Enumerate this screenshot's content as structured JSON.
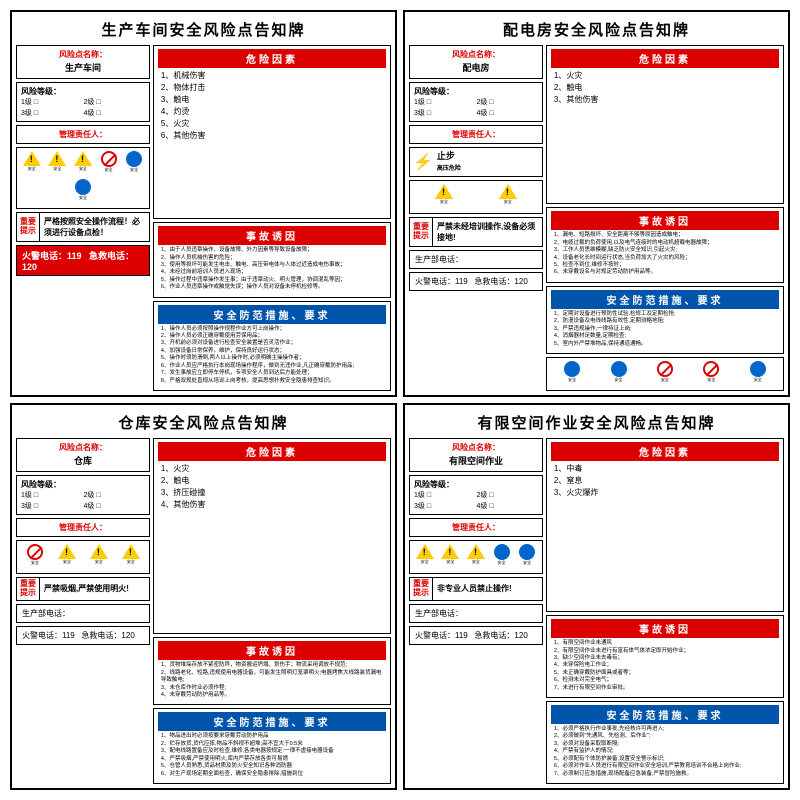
{
  "colors": {
    "red": "#d00",
    "blue": "#0055aa",
    "yellow": "#ffcc00"
  },
  "common": {
    "name_label": "风险点名称：",
    "level_label": "风险等级：",
    "levels": [
      "1级",
      "2级",
      "3级",
      "4级"
    ],
    "manager_label": "管理责任人：",
    "tip_label1": "重要",
    "tip_label2": "提示",
    "hazard_hdr": "危险因素",
    "cause_hdr": "事故诱因",
    "measure_hdr": "安全防范措施、要求",
    "fire_phone": "火警电话：119",
    "emerg_phone": "急救电话：120",
    "dept_phone": "生产部电话："
  },
  "cards": [
    {
      "title": "生产车间安全风险点告知牌",
      "name": "生产车间",
      "icons": [
        {
          "t": "tri"
        },
        {
          "t": "tri"
        },
        {
          "t": "tri"
        },
        {
          "t": "circ"
        },
        {
          "t": "circ-blue"
        },
        {
          "t": "circ-blue"
        }
      ],
      "tip": "严格按照安全操作流程！必须进行设备点检！",
      "red_bottom": true,
      "hazards": [
        "1、机械伤害",
        "2、物体打击",
        "3、触电",
        "4、灼烫",
        "5、火灾",
        "6、其他伤害"
      ],
      "causes": [
        "1、由于人员违章操作、设备故障、外力因素等导致设备故障；",
        "2、操作人员机械伤害的危险；",
        "3、使用等损坏可能发生电击、触电、高压带电体与人体过近造成电伤事故；",
        "4、未经过岗前培训人员进入现场；",
        "5、操作过程中违章操作发生事；由于违章动火、明火管理，协调混乱等因；",
        "6、作业人员违章操作或触觉失误；操作人员对设备未停机检修等。"
      ],
      "measures": [
        "1、操作人员必须按照操作规程作业方可上岗操作；",
        "2、操作人员必须正确穿戴使用劳保用品；",
        "3、开机前必须对设备进行检查安全装置是否灵活作业；",
        "4、加强设备日常保养，维护，保持良好运行状态；",
        "5、操作时须防滑倒,两人以上操作时,必须明确主操操作者；",
        "6、作业人员应严格执行本岗现场操作程序，做到无违作业,凡正确穿戴防护用品;",
        "7、发生事故应立即停车停机，专项安全人员到达后方能处理；",
        "8、严格双规处直规从培训上岗考核，提高思想扑救安全隐患排查知识。"
      ]
    },
    {
      "title": "配电房安全风险点告知牌",
      "name": "配电房",
      "icons": [
        {
          "t": "tri"
        },
        {
          "t": "tri"
        }
      ],
      "stop_sign": true,
      "tip": "严禁未经培训操作,设备必须接地!",
      "red_bottom": false,
      "hazards": [
        "1、火灾",
        "2、触电",
        "3、其他伤害"
      ],
      "causes": [
        "1、漏电、短路损坏、安全距离不够等原因造成触电；",
        "2、电缆过载的负荷使用,以及电气连接时的电动机超载电器故障；",
        "3、工作人员思维模糊,缺乏防火安全知识,引起火灾;",
        "4、设备老化长时间运行状态,当负荷加大了火灾的风险；",
        "5、检查不到位,维修不按时；",
        "6、未穿戴设名与对规定劳动防护用品等。"
      ],
      "measures": [
        "1、定期对设备进行预防性试验,检修工及定期检抢;",
        "2、防漫设备及电线线路有效性,定期测略地阻;",
        "3、严禁违规操作,一律持证上岗;",
        "4、消烟器材足数量,定期检查;",
        "5、室内外严禁堆物品,保持通道通畅。"
      ],
      "bot_icons": [
        {
          "t": "circ-blue"
        },
        {
          "t": "circ-blue"
        },
        {
          "t": "circ"
        },
        {
          "t": "circ"
        },
        {
          "t": "circ-blue"
        }
      ]
    },
    {
      "title": "仓库安全风险点告知牌",
      "name": "仓库",
      "icons": [
        {
          "t": "circ"
        },
        {
          "t": "tri"
        },
        {
          "t": "tri"
        },
        {
          "t": "tri"
        }
      ],
      "tip": "严禁吸烟,严禁使用明火!",
      "red_bottom": false,
      "hazards": [
        "1、火灾",
        "2、触电",
        "3、挤压碰撞",
        "4、其他伤害"
      ],
      "causes": [
        "1、货物堆垛存放不紧密防异，物资搬运坍塌、划伤手；物流采用调放不规范;",
        "2、线路老化、短路,违规使用电器设备，可能发生照明灯笼罩明火;电器烤焦大线路装货漏电导致触电;",
        "3、未仓库作时业必须作程;",
        "4、未穿戴劳动防护用品等。"
      ],
      "measures": [
        "1、物品进出时必须按要求穿戴劳动防护用品",
        "2、贮存放货,货代应摔,物品不斜视不超堆;高不宜大于0.5米",
        "3、配电线路置备应及时检查,维修,各类电器按规定:一律不虚接电器设备",
        "4、严禁吸烟,严禁使用明火,库内严禁存放各类可易燃",
        "5、仓管人员熟悉,货品材质及防火安全知识各种消防器",
        "6、对生产现场定期全面检查，确保安全隐患排除,措施到位"
      ]
    },
    {
      "title": "有限空间作业安全风险点告知牌",
      "name": "有限空间作业",
      "icons": [
        {
          "t": "tri"
        },
        {
          "t": "tri"
        },
        {
          "t": "tri"
        },
        {
          "t": "circ-blue"
        },
        {
          "t": "circ-blue"
        }
      ],
      "tip": "非专业人员禁止操作!",
      "red_bottom": false,
      "hazards": [
        "1、中毒",
        "2、窒息",
        "3、火灾爆炸"
      ],
      "causes": [
        "1、有限空间作业未通风",
        "2、有限空间作业未进行有富有体气体浓定即开始作业；",
        "3、缺少空间作业未去毒有；",
        "4、未穿保险电工作业；",
        "5、未正确穿戴防护面具或者等；",
        "6、检测未对完全电气；",
        "7、未进行有限空间作业审批。"
      ],
      "measures": [
        "1、必须严格执行作业事批,先经核许可再进入;",
        "2、必须做到\"先通风、先检测、后作业\";",
        "3、必须对设备采取取断隔;",
        "4、严禁有监护人的情况;",
        "5、必须配有个体防护装备,设置安全警示标识;",
        "6、必须对作业人员进行有限空间作业安全培训,严禁教育培训不合格上岗作业;",
        "7、必须制订应急措施,现场配备应急装备,严禁冒险施救。"
      ]
    }
  ]
}
